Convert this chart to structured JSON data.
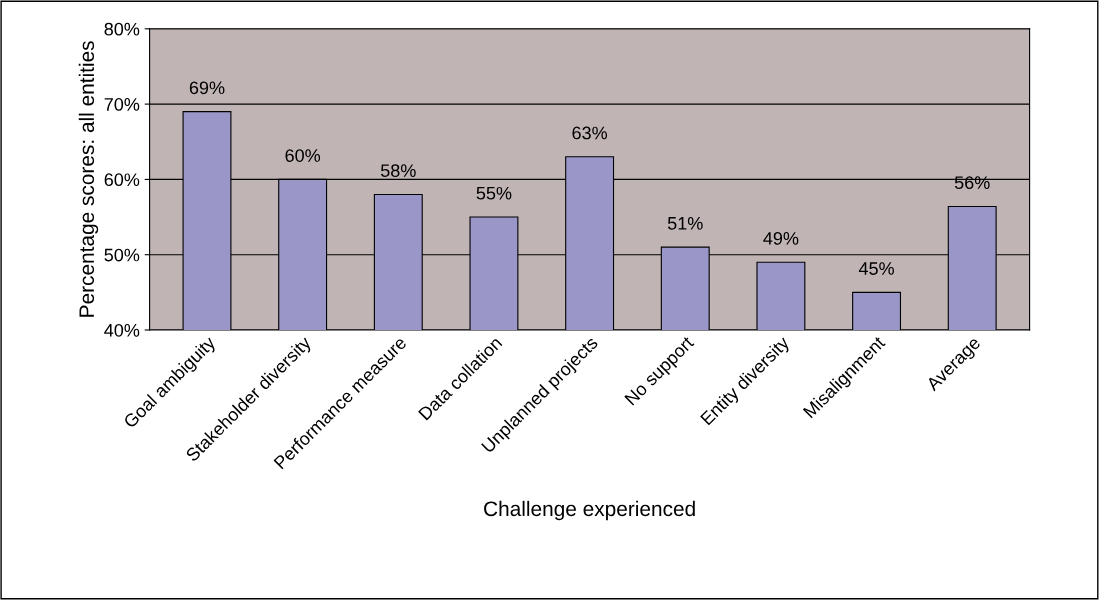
{
  "chart_data": {
    "type": "bar",
    "xlabel": "Challenge experienced",
    "ylabel": "Percentage scores: all entities",
    "categories": [
      "Goal ambiguity",
      "Stakeholder diversity",
      "Performance measure",
      "Data collation",
      "Unplanned projects",
      "No support",
      "Entity diversity",
      "Misalignment",
      "Average"
    ],
    "values": [
      69,
      60,
      58,
      55,
      63,
      51,
      49,
      45,
      56.4
    ],
    "value_labels": [
      "69%",
      "60%",
      "58%",
      "55%",
      "63%",
      "51%",
      "49%",
      "45%",
      "56%"
    ],
    "color": "#9b96c8",
    "ylim": [
      40,
      80
    ],
    "yticks": [
      {
        "value": 40,
        "label": "40%"
      },
      {
        "value": 50,
        "label": "50%"
      },
      {
        "value": 60,
        "label": "60%"
      },
      {
        "value": 70,
        "label": "70%"
      },
      {
        "value": 80,
        "label": "80%"
      }
    ],
    "grid": "y"
  }
}
